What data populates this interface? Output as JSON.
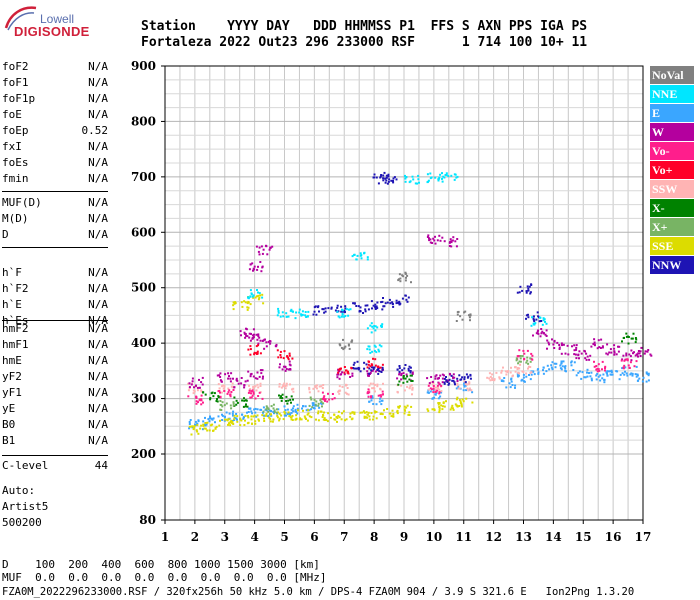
{
  "logo": {
    "line1": "Lowell",
    "line2": "DIGISONDE"
  },
  "header": {
    "row1": "Station    YYYY DAY   DDD HHMMSS P1  FFS S AXN PPS IGA PS",
    "row2": "Fortaleza 2022 Out23 296 233000 RSF      1 714 100 10+ 11"
  },
  "params": {
    "group1": [
      {
        "name": "foF2",
        "value": "N/A"
      },
      {
        "name": "foF1",
        "value": "N/A"
      },
      {
        "name": "foF1p",
        "value": "N/A"
      },
      {
        "name": "foE",
        "value": "N/A"
      },
      {
        "name": "foEp",
        "value": "0.52"
      },
      {
        "name": "fxI",
        "value": "N/A"
      },
      {
        "name": "foEs",
        "value": "N/A"
      },
      {
        "name": "fmin",
        "value": "N/A"
      }
    ],
    "group2": [
      {
        "name": "MUF(D)",
        "value": "N/A"
      },
      {
        "name": "M(D)",
        "value": "N/A"
      },
      {
        "name": "D",
        "value": "N/A"
      }
    ],
    "group3": [
      {
        "name": "h`F",
        "value": "N/A"
      },
      {
        "name": "h`F2",
        "value": "N/A"
      },
      {
        "name": "h`E",
        "value": "N/A"
      },
      {
        "name": "h`Es",
        "value": "N/A"
      }
    ],
    "group4": [
      {
        "name": "hmF2",
        "value": "N/A"
      },
      {
        "name": "hmF1",
        "value": "N/A"
      },
      {
        "name": "hmE",
        "value": "N/A"
      },
      {
        "name": "yF2",
        "value": "N/A"
      },
      {
        "name": "yF1",
        "value": "N/A"
      },
      {
        "name": "yE",
        "value": "N/A"
      },
      {
        "name": "B0",
        "value": "N/A"
      },
      {
        "name": "B1",
        "value": "N/A"
      }
    ],
    "clevel": {
      "name": "C-level",
      "value": "44"
    },
    "auto": [
      "Auto:",
      "Artist5",
      "500200"
    ]
  },
  "legend": [
    {
      "label": "NoVal",
      "color": "#808080"
    },
    {
      "label": "NNE",
      "color": "#00e6ff"
    },
    {
      "label": "E",
      "color": "#3aa6ff"
    },
    {
      "label": "W",
      "color": "#b4009e"
    },
    {
      "label": "Vo-",
      "color": "#ff1e8c"
    },
    {
      "label": "Vo+",
      "color": "#ff0028"
    },
    {
      "label": "SSW",
      "color": "#ffb4b4"
    },
    {
      "label": "X-",
      "color": "#008200"
    },
    {
      "label": "X+",
      "color": "#78b464"
    },
    {
      "label": "SSE",
      "color": "#dcdc00"
    },
    {
      "label": "NNW",
      "color": "#1e14b4"
    }
  ],
  "bottom": {
    "d_line": "D    100  200  400  600  800 1000 1500 3000 [km]",
    "muf_line": "MUF  0.0  0.0  0.0  0.0  0.0  0.0  0.0  0.0 [MHz]",
    "footer": "FZA0M_2022296233000.RSF / 320fx256h 50 kHz 5.0 km / DPS-4 FZA0M 904 / 3.9 S 321.6 E   Ion2Png 1.3.20"
  },
  "chart_data": {
    "type": "scatter",
    "title": "",
    "xlabel": "",
    "ylabel": "",
    "xlim": [
      1,
      17
    ],
    "ylim": [
      80,
      900
    ],
    "x_ticks": [
      "1",
      "2",
      "3",
      "4",
      "5",
      "6",
      "7",
      "8",
      "9",
      "10",
      "11",
      "12",
      "13",
      "14",
      "15",
      "16",
      "17"
    ],
    "y_ticks": [
      "80",
      "200",
      "300",
      "400",
      "500",
      "600",
      "700",
      "800",
      "900"
    ],
    "grid": true,
    "legend_position": "right",
    "series": [
      {
        "name": "E",
        "color": "#3aa6ff",
        "points": [
          [
            2.0,
            255
          ],
          [
            2.5,
            262
          ],
          [
            3.0,
            268
          ],
          [
            3.5,
            272
          ],
          [
            4.0,
            275
          ],
          [
            4.5,
            278
          ],
          [
            5.0,
            280
          ],
          [
            5.5,
            282
          ],
          [
            6.0,
            285
          ],
          [
            8.0,
            300
          ],
          [
            10.0,
            310
          ],
          [
            11.0,
            320
          ],
          [
            12.5,
            330
          ],
          [
            13.0,
            340
          ],
          [
            13.5,
            350
          ],
          [
            14.0,
            360
          ],
          [
            14.5,
            360
          ],
          [
            15.0,
            345
          ],
          [
            15.5,
            340
          ],
          [
            16.0,
            345
          ],
          [
            16.5,
            350
          ],
          [
            17.0,
            340
          ]
        ]
      },
      {
        "name": "SSE",
        "color": "#dcdc00",
        "points": [
          [
            2.0,
            245
          ],
          [
            2.5,
            252
          ],
          [
            3.0,
            258
          ],
          [
            3.5,
            262
          ],
          [
            4.0,
            265
          ],
          [
            4.5,
            268
          ],
          [
            5.0,
            270
          ],
          [
            5.5,
            272
          ],
          [
            6.0,
            270
          ],
          [
            6.5,
            268
          ],
          [
            7.0,
            270
          ],
          [
            7.5,
            272
          ],
          [
            8.0,
            270
          ],
          [
            8.5,
            275
          ],
          [
            9.0,
            280
          ],
          [
            10.0,
            285
          ],
          [
            10.5,
            290
          ],
          [
            11.0,
            295
          ],
          [
            3.5,
            470
          ],
          [
            4.0,
            480
          ]
        ]
      },
      {
        "name": "SSW",
        "color": "#ffb4b4",
        "points": [
          [
            2.0,
            320
          ],
          [
            3.0,
            320
          ],
          [
            4.0,
            322
          ],
          [
            5.0,
            322
          ],
          [
            6.0,
            320
          ],
          [
            7.0,
            318
          ],
          [
            8.0,
            320
          ],
          [
            9.0,
            318
          ],
          [
            10.0,
            322
          ],
          [
            11.0,
            325
          ],
          [
            12.0,
            340
          ],
          [
            12.5,
            350
          ],
          [
            13.0,
            355
          ]
        ]
      },
      {
        "name": "W",
        "color": "#b4009e",
        "points": [
          [
            2.0,
            330
          ],
          [
            3.0,
            340
          ],
          [
            4.0,
            345
          ],
          [
            4.0,
            410
          ],
          [
            4.5,
            400
          ],
          [
            5.0,
            360
          ],
          [
            7.0,
            345
          ],
          [
            8.0,
            350
          ],
          [
            9.0,
            340
          ],
          [
            10.0,
            335
          ],
          [
            10.5,
            340
          ],
          [
            13.5,
            420
          ],
          [
            14.0,
            400
          ],
          [
            14.5,
            390
          ],
          [
            15.0,
            380
          ],
          [
            15.5,
            400
          ],
          [
            16.0,
            390
          ],
          [
            16.5,
            380
          ],
          [
            17.0,
            385
          ],
          [
            10.0,
            590
          ],
          [
            10.5,
            585
          ],
          [
            3.5,
            330
          ],
          [
            3.7,
            420
          ],
          [
            4.0,
            540
          ],
          [
            4.3,
            570
          ]
        ]
      },
      {
        "name": "NNW",
        "color": "#1e14b4",
        "points": [
          [
            8.0,
            470
          ],
          [
            8.5,
            475
          ],
          [
            9.0,
            480
          ],
          [
            7.5,
            465
          ],
          [
            8.2,
            698
          ],
          [
            8.5,
            700
          ],
          [
            6.2,
            460
          ],
          [
            6.8,
            465
          ],
          [
            7.5,
            360
          ],
          [
            8.0,
            350
          ],
          [
            9.0,
            355
          ],
          [
            10.5,
            335
          ],
          [
            11.0,
            340
          ],
          [
            13.0,
            500
          ],
          [
            13.3,
            450
          ]
        ]
      },
      {
        "name": "NNE",
        "color": "#00e6ff",
        "points": [
          [
            7.0,
            455
          ],
          [
            7.5,
            560
          ],
          [
            8.0,
            390
          ],
          [
            8.0,
            430
          ],
          [
            10.0,
            700
          ],
          [
            10.5,
            702
          ],
          [
            9.2,
            695
          ],
          [
            5.0,
            455
          ],
          [
            5.5,
            455
          ],
          [
            4.0,
            490
          ],
          [
            13.5,
            440
          ]
        ]
      },
      {
        "name": "Vo-",
        "color": "#ff1e8c",
        "points": [
          [
            2.0,
            300
          ],
          [
            3.0,
            310
          ],
          [
            4.0,
            310
          ],
          [
            6.5,
            305
          ],
          [
            8.0,
            310
          ],
          [
            10.0,
            320
          ],
          [
            13.0,
            380
          ],
          [
            15.5,
            360
          ],
          [
            16.5,
            365
          ]
        ]
      },
      {
        "name": "Vo+",
        "color": "#ff0028",
        "points": [
          [
            4.0,
            390
          ],
          [
            5.0,
            380
          ],
          [
            7.0,
            350
          ],
          [
            8.0,
            365
          ]
        ]
      },
      {
        "name": "X-",
        "color": "#008200",
        "points": [
          [
            2.5,
            305
          ],
          [
            3.5,
            295
          ],
          [
            5.0,
            300
          ],
          [
            9.0,
            335
          ],
          [
            16.5,
            410
          ]
        ]
      },
      {
        "name": "X+",
        "color": "#78b464",
        "points": [
          [
            3.0,
            290
          ],
          [
            4.5,
            285
          ],
          [
            6.0,
            295
          ],
          [
            13.0,
            370
          ]
        ]
      },
      {
        "name": "NoVal",
        "color": "#808080",
        "points": [
          [
            7.0,
            400
          ],
          [
            9.0,
            520
          ],
          [
            11.0,
            450
          ]
        ]
      }
    ]
  }
}
